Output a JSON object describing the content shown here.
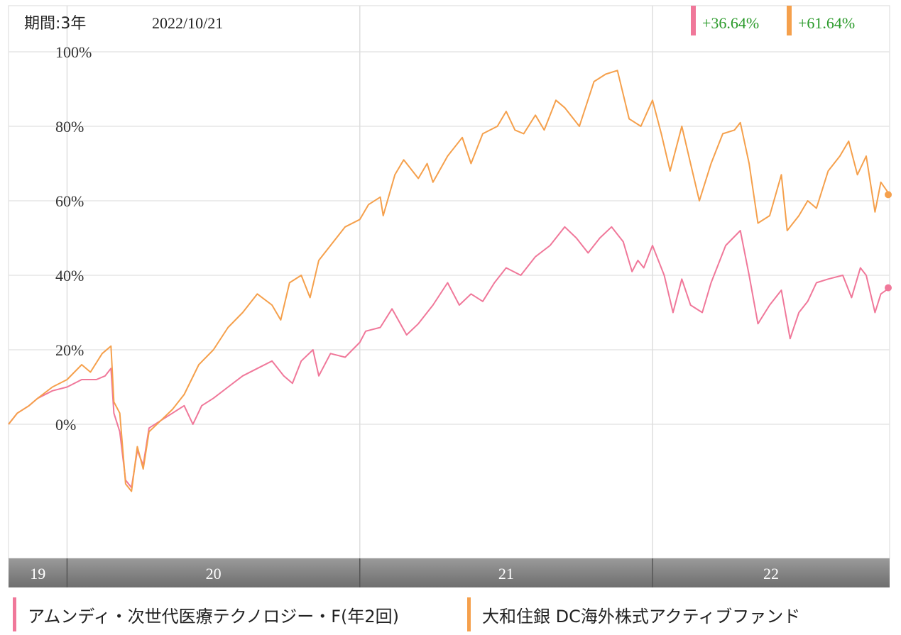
{
  "header": {
    "period_label": "期間:3年",
    "date_label": "2022/10/21"
  },
  "badges": [
    {
      "text": "+36.64%",
      "color": "#f0789a"
    },
    {
      "text": "+61.64%",
      "color": "#f5a04c"
    }
  ],
  "legend": [
    {
      "label": "アムンディ・次世代医療テクノロジー・F(年2回)",
      "color": "#f0789a"
    },
    {
      "label": "大和住銀 DC海外株式アクティブファンド",
      "color": "#f5a04c"
    }
  ],
  "colors": {
    "positive_text": "#2a9a2a",
    "axis_bar": "#7a7a7a",
    "grid": "#e6e6e6"
  },
  "chart_data": {
    "type": "line",
    "title": "",
    "xlabel": "",
    "ylabel": "",
    "x_range": [
      2019.8,
      2022.81
    ],
    "ylim": [
      -30,
      100
    ],
    "yticks": [
      0,
      20,
      40,
      60,
      80,
      100
    ],
    "ytick_labels": [
      "0%",
      "20%",
      "40%",
      "60%",
      "80%",
      "100%"
    ],
    "year_labels": [
      {
        "label": "19",
        "from": 2019.8,
        "to": 2020.0
      },
      {
        "label": "20",
        "from": 2020.0,
        "to": 2021.0
      },
      {
        "label": "21",
        "from": 2021.0,
        "to": 2022.0
      },
      {
        "label": "22",
        "from": 2022.0,
        "to": 2022.81
      }
    ],
    "grid": true,
    "series": [
      {
        "name": "アムンディ・次世代医療テクノロジー・F(年2回)",
        "color": "#f0789a",
        "last_value": 36.64,
        "points": [
          [
            2019.8,
            0
          ],
          [
            2019.83,
            3
          ],
          [
            2019.87,
            5
          ],
          [
            2019.9,
            7
          ],
          [
            2019.95,
            9
          ],
          [
            2020.0,
            10
          ],
          [
            2020.05,
            12
          ],
          [
            2020.1,
            12
          ],
          [
            2020.13,
            13
          ],
          [
            2020.15,
            15
          ],
          [
            2020.16,
            3
          ],
          [
            2020.18,
            -2
          ],
          [
            2020.2,
            -15
          ],
          [
            2020.22,
            -17
          ],
          [
            2020.24,
            -7
          ],
          [
            2020.26,
            -11
          ],
          [
            2020.28,
            -1
          ],
          [
            2020.32,
            1
          ],
          [
            2020.36,
            3
          ],
          [
            2020.4,
            5
          ],
          [
            2020.43,
            0
          ],
          [
            2020.46,
            5
          ],
          [
            2020.5,
            7
          ],
          [
            2020.55,
            10
          ],
          [
            2020.6,
            13
          ],
          [
            2020.65,
            15
          ],
          [
            2020.7,
            17
          ],
          [
            2020.74,
            13
          ],
          [
            2020.77,
            11
          ],
          [
            2020.8,
            17
          ],
          [
            2020.84,
            20
          ],
          [
            2020.86,
            13
          ],
          [
            2020.9,
            19
          ],
          [
            2020.95,
            18
          ],
          [
            2021.0,
            22
          ],
          [
            2021.02,
            25
          ],
          [
            2021.07,
            26
          ],
          [
            2021.11,
            31
          ],
          [
            2021.16,
            24
          ],
          [
            2021.2,
            27
          ],
          [
            2021.25,
            32
          ],
          [
            2021.3,
            38
          ],
          [
            2021.34,
            32
          ],
          [
            2021.38,
            35
          ],
          [
            2021.42,
            33
          ],
          [
            2021.46,
            38
          ],
          [
            2021.5,
            42
          ],
          [
            2021.55,
            40
          ],
          [
            2021.6,
            45
          ],
          [
            2021.65,
            48
          ],
          [
            2021.7,
            53
          ],
          [
            2021.74,
            50
          ],
          [
            2021.78,
            46
          ],
          [
            2021.82,
            50
          ],
          [
            2021.86,
            53
          ],
          [
            2021.9,
            49
          ],
          [
            2021.93,
            41
          ],
          [
            2021.95,
            44
          ],
          [
            2021.97,
            42
          ],
          [
            2022.0,
            48
          ],
          [
            2022.04,
            40
          ],
          [
            2022.07,
            30
          ],
          [
            2022.1,
            39
          ],
          [
            2022.13,
            32
          ],
          [
            2022.17,
            30
          ],
          [
            2022.2,
            38
          ],
          [
            2022.25,
            48
          ],
          [
            2022.3,
            52
          ],
          [
            2022.33,
            40
          ],
          [
            2022.36,
            27
          ],
          [
            2022.4,
            32
          ],
          [
            2022.44,
            36
          ],
          [
            2022.47,
            23
          ],
          [
            2022.5,
            30
          ],
          [
            2022.53,
            33
          ],
          [
            2022.56,
            38
          ],
          [
            2022.6,
            39
          ],
          [
            2022.65,
            40
          ],
          [
            2022.68,
            34
          ],
          [
            2022.71,
            42
          ],
          [
            2022.73,
            40
          ],
          [
            2022.76,
            30
          ],
          [
            2022.78,
            35
          ],
          [
            2022.81,
            36.64
          ]
        ]
      },
      {
        "name": "大和住銀 DC海外株式アクティブファンド",
        "color": "#f5a04c",
        "last_value": 61.64,
        "points": [
          [
            2019.8,
            0
          ],
          [
            2019.83,
            3
          ],
          [
            2019.87,
            5
          ],
          [
            2019.9,
            7
          ],
          [
            2019.95,
            10
          ],
          [
            2020.0,
            12
          ],
          [
            2020.05,
            16
          ],
          [
            2020.08,
            14
          ],
          [
            2020.12,
            19
          ],
          [
            2020.15,
            21
          ],
          [
            2020.16,
            6
          ],
          [
            2020.18,
            3
          ],
          [
            2020.2,
            -16
          ],
          [
            2020.22,
            -18
          ],
          [
            2020.24,
            -6
          ],
          [
            2020.26,
            -12
          ],
          [
            2020.28,
            -2
          ],
          [
            2020.32,
            1
          ],
          [
            2020.36,
            4
          ],
          [
            2020.4,
            8
          ],
          [
            2020.45,
            16
          ],
          [
            2020.5,
            20
          ],
          [
            2020.55,
            26
          ],
          [
            2020.6,
            30
          ],
          [
            2020.65,
            35
          ],
          [
            2020.7,
            32
          ],
          [
            2020.73,
            28
          ],
          [
            2020.76,
            38
          ],
          [
            2020.8,
            40
          ],
          [
            2020.83,
            34
          ],
          [
            2020.86,
            44
          ],
          [
            2020.9,
            48
          ],
          [
            2020.95,
            53
          ],
          [
            2021.0,
            55
          ],
          [
            2021.03,
            59
          ],
          [
            2021.07,
            61
          ],
          [
            2021.08,
            56
          ],
          [
            2021.12,
            67
          ],
          [
            2021.15,
            71
          ],
          [
            2021.2,
            66
          ],
          [
            2021.23,
            70
          ],
          [
            2021.25,
            65
          ],
          [
            2021.3,
            72
          ],
          [
            2021.35,
            77
          ],
          [
            2021.38,
            70
          ],
          [
            2021.42,
            78
          ],
          [
            2021.47,
            80
          ],
          [
            2021.5,
            84
          ],
          [
            2021.53,
            79
          ],
          [
            2021.56,
            78
          ],
          [
            2021.6,
            83
          ],
          [
            2021.63,
            79
          ],
          [
            2021.67,
            87
          ],
          [
            2021.7,
            85
          ],
          [
            2021.75,
            80
          ],
          [
            2021.8,
            92
          ],
          [
            2021.84,
            94
          ],
          [
            2021.88,
            95
          ],
          [
            2021.92,
            82
          ],
          [
            2021.96,
            80
          ],
          [
            2022.0,
            87
          ],
          [
            2022.03,
            78
          ],
          [
            2022.06,
            68
          ],
          [
            2022.1,
            80
          ],
          [
            2022.13,
            70
          ],
          [
            2022.16,
            60
          ],
          [
            2022.2,
            70
          ],
          [
            2022.24,
            78
          ],
          [
            2022.28,
            79
          ],
          [
            2022.3,
            81
          ],
          [
            2022.33,
            70
          ],
          [
            2022.36,
            54
          ],
          [
            2022.4,
            56
          ],
          [
            2022.44,
            67
          ],
          [
            2022.46,
            52
          ],
          [
            2022.5,
            56
          ],
          [
            2022.53,
            60
          ],
          [
            2022.56,
            58
          ],
          [
            2022.6,
            68
          ],
          [
            2022.64,
            72
          ],
          [
            2022.67,
            76
          ],
          [
            2022.7,
            67
          ],
          [
            2022.73,
            72
          ],
          [
            2022.76,
            57
          ],
          [
            2022.78,
            65
          ],
          [
            2022.81,
            61.64
          ]
        ]
      }
    ]
  }
}
